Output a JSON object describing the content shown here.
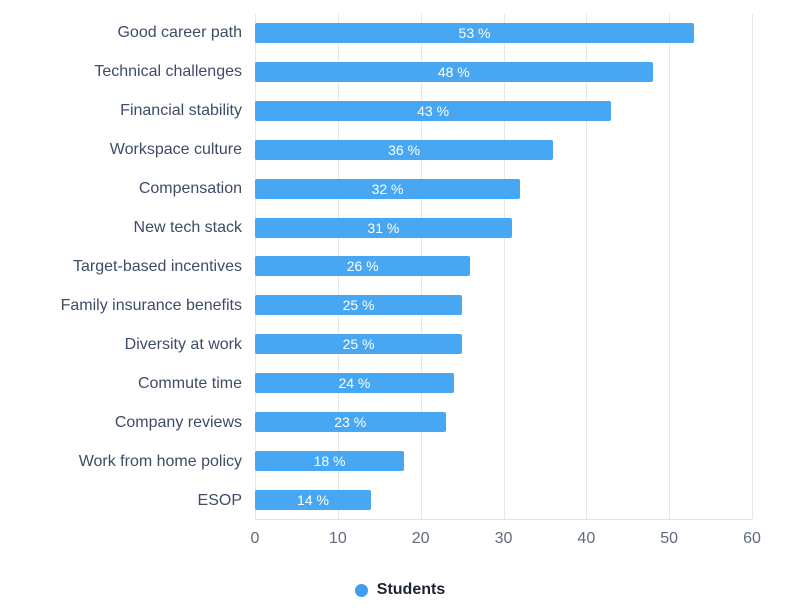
{
  "chart_data": {
    "type": "bar",
    "orientation": "horizontal",
    "title": "",
    "xlabel": "",
    "ylabel": "",
    "xlim": [
      0,
      60
    ],
    "xticks": [
      0,
      10,
      20,
      30,
      40,
      50,
      60
    ],
    "grid": true,
    "categories": [
      "Good career path",
      "Technical challenges",
      "Financial stability",
      "Workspace culture",
      "Compensation",
      "New tech stack",
      "Target-based incentives",
      "Family insurance benefits",
      "Diversity at work",
      "Commute time",
      "Company reviews",
      "Work from home policy",
      "ESOP"
    ],
    "series": [
      {
        "name": "Students",
        "values": [
          53,
          48,
          43,
          36,
          32,
          31,
          26,
          25,
          25,
          24,
          23,
          18,
          14
        ],
        "value_labels": [
          "53 %",
          "48 %",
          "43 %",
          "36 %",
          "32 %",
          "31 %",
          "26 %",
          "25 %",
          "25 %",
          "24 %",
          "23 %",
          "18 %",
          "14 %"
        ]
      }
    ],
    "legend": {
      "position": "bottom",
      "label": "Students"
    },
    "colors": {
      "bar": "#47a7f2",
      "value_label": "#ffffff",
      "category_label": "#3e4c66",
      "tick_label": "#5f6b7a",
      "gridline": "#e7e7e7",
      "legend_dot": "#3f9ef0"
    }
  }
}
